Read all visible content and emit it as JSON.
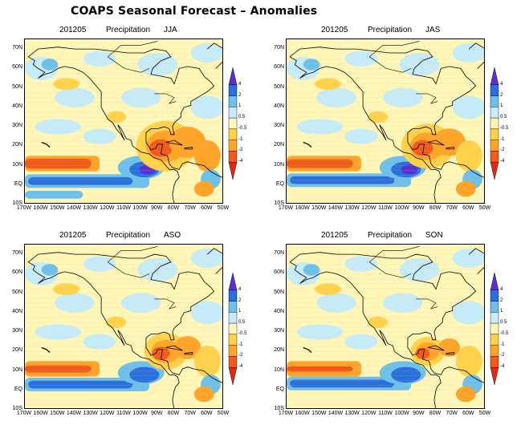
{
  "title": "COAPS Seasonal Forecast – Anomalies",
  "chart_data": [
    {
      "type": "heatmap",
      "init": "201205",
      "variable": "Precipitation",
      "season": "JJA",
      "lat_ticks": [
        "70N",
        "60N",
        "50N",
        "40N",
        "30N",
        "20N",
        "10N",
        "EQ",
        "10S"
      ],
      "lon_ticks": [
        "170W",
        "160W",
        "150W",
        "140W",
        "130W",
        "120W",
        "110W",
        "100W",
        "90W",
        "80W",
        "70W",
        "60W",
        "50W"
      ],
      "colorbar_levels": [
        "4",
        "2",
        "1",
        "0.5",
        "-0.5",
        "-1",
        "-2",
        "-4"
      ]
    },
    {
      "type": "heatmap",
      "init": "201205",
      "variable": "Precipitation",
      "season": "JAS",
      "lat_ticks": [
        "70N",
        "60N",
        "50N",
        "40N",
        "30N",
        "20N",
        "10N",
        "EQ",
        "10S"
      ],
      "lon_ticks": [
        "170W",
        "160W",
        "150W",
        "140W",
        "130W",
        "120W",
        "110W",
        "100W",
        "90W",
        "80W",
        "70W",
        "60W",
        "50W"
      ],
      "colorbar_levels": [
        "4",
        "2",
        "1",
        "0.5",
        "-0.5",
        "-1",
        "-2",
        "-4"
      ]
    },
    {
      "type": "heatmap",
      "init": "201205",
      "variable": "Precipitation",
      "season": "ASO",
      "lat_ticks": [
        "70N",
        "60N",
        "50N",
        "40N",
        "30N",
        "20N",
        "10N",
        "EQ",
        "10S"
      ],
      "lon_ticks": [
        "170W",
        "160W",
        "150W",
        "140W",
        "130W",
        "120W",
        "110W",
        "100W",
        "90W",
        "80W",
        "70W",
        "60W",
        "50W"
      ],
      "colorbar_levels": [
        "4",
        "2",
        "1",
        "0.5",
        "-0.5",
        "-1",
        "-2",
        "-4"
      ]
    },
    {
      "type": "heatmap",
      "init": "201205",
      "variable": "Precipitation",
      "season": "SON",
      "lat_ticks": [
        "70N",
        "60N",
        "50N",
        "40N",
        "30N",
        "20N",
        "10N",
        "EQ",
        "10S"
      ],
      "lon_ticks": [
        "170W",
        "160W",
        "150W",
        "140W",
        "130W",
        "120W",
        "110W",
        "100W",
        "90W",
        "80W",
        "70W",
        "60W",
        "50W"
      ],
      "colorbar_levels": [
        "4",
        "2",
        "1",
        "0.5",
        "-0.5",
        "-1",
        "-2",
        "-4"
      ]
    }
  ],
  "colors": {
    "land_neutral": "#fff6b8",
    "wet_1": "#c6ecfa",
    "wet_2": "#6cc0ea",
    "wet_3": "#2a6fdc",
    "wet_4": "#5a2fd0",
    "dry_1": "#ffd24a",
    "dry_2": "#ffa428",
    "dry_3": "#f05a1a",
    "dry_4": "#e02814",
    "coast": "#000000"
  }
}
